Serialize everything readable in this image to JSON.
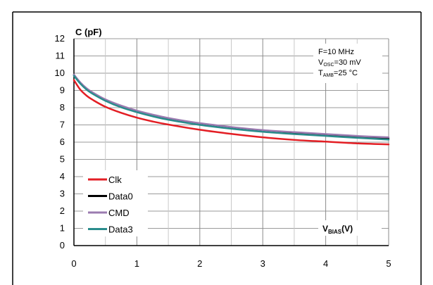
{
  "chart_data": {
    "type": "line",
    "title": "",
    "ylabel": "C (pF)",
    "xlabel": {
      "main": "V",
      "sub": "BIAS",
      "tail": "(V)"
    },
    "xlim": [
      0,
      5
    ],
    "ylim": [
      0,
      12
    ],
    "xticks": [
      0,
      1,
      2,
      3,
      4,
      5
    ],
    "yticks": [
      0,
      1,
      2,
      3,
      4,
      5,
      6,
      7,
      8,
      9,
      10,
      11,
      12
    ],
    "grid": true,
    "legend_position": "lower-left",
    "conditions": [
      {
        "main": "F=10 MHz",
        "sub": "",
        "tail": ""
      },
      {
        "main": "V",
        "sub": "OSC",
        "tail": "=30 mV"
      },
      {
        "main": "T",
        "sub": "AMB",
        "tail": "=25 °C"
      }
    ],
    "x": [
      0,
      0.1,
      0.2,
      0.3,
      0.5,
      0.75,
      1,
      1.25,
      1.5,
      2,
      2.5,
      3,
      3.5,
      4,
      4.5,
      5
    ],
    "series": [
      {
        "name": "Clk",
        "color": "#e31e24",
        "values": [
          9.6,
          9.05,
          8.7,
          8.45,
          8.05,
          7.7,
          7.42,
          7.2,
          7.02,
          6.72,
          6.48,
          6.28,
          6.13,
          6.03,
          5.93,
          5.87
        ]
      },
      {
        "name": "Data0",
        "color": "#000000",
        "values": [
          9.9,
          9.45,
          9.1,
          8.85,
          8.45,
          8.08,
          7.8,
          7.56,
          7.36,
          7.05,
          6.82,
          6.65,
          6.52,
          6.41,
          6.3,
          6.2
        ]
      },
      {
        "name": "CMD",
        "color": "#9b7bb0",
        "values": [
          9.92,
          9.47,
          9.13,
          8.88,
          8.48,
          8.12,
          7.83,
          7.6,
          7.4,
          7.1,
          6.88,
          6.7,
          6.58,
          6.47,
          6.36,
          6.28
        ]
      },
      {
        "name": "Data3",
        "color": "#2a8c8c",
        "values": [
          9.85,
          9.4,
          9.05,
          8.8,
          8.4,
          8.02,
          7.74,
          7.5,
          7.3,
          7.0,
          6.78,
          6.6,
          6.47,
          6.36,
          6.25,
          6.15
        ]
      }
    ]
  }
}
